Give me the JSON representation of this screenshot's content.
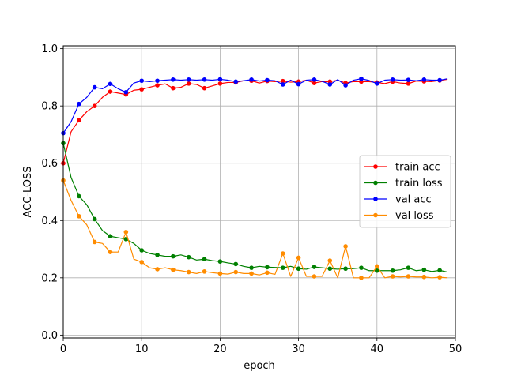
{
  "chart_data": {
    "type": "line",
    "xlabel": "epoch",
    "ylabel": "ACC-LOSS",
    "xlim": [
      0,
      50
    ],
    "ylim": [
      -0.01,
      1.01
    ],
    "xticks": [
      0,
      10,
      20,
      30,
      40,
      50
    ],
    "yticks": [
      0.0,
      0.2,
      0.4,
      0.6,
      0.8,
      1.0
    ],
    "xtick_labels": [
      "0",
      "10",
      "20",
      "30",
      "40",
      "50"
    ],
    "ytick_labels": [
      "0.0",
      "0.2",
      "0.4",
      "0.6",
      "0.8",
      "1.0"
    ],
    "grid": true,
    "legend_position": "center-right",
    "x": [
      0,
      1,
      2,
      3,
      4,
      5,
      6,
      7,
      8,
      9,
      10,
      11,
      12,
      13,
      14,
      15,
      16,
      17,
      18,
      19,
      20,
      21,
      22,
      23,
      24,
      25,
      26,
      27,
      28,
      29,
      30,
      31,
      32,
      33,
      34,
      35,
      36,
      37,
      38,
      39,
      40,
      41,
      42,
      43,
      44,
      45,
      46,
      47,
      48,
      49
    ],
    "marker_every": 2,
    "series": [
      {
        "name": "train acc",
        "color": "#ff0000",
        "values": [
          0.6,
          0.71,
          0.75,
          0.78,
          0.8,
          0.83,
          0.85,
          0.845,
          0.84,
          0.855,
          0.858,
          0.865,
          0.872,
          0.877,
          0.862,
          0.865,
          0.878,
          0.875,
          0.862,
          0.87,
          0.878,
          0.882,
          0.882,
          0.888,
          0.888,
          0.88,
          0.887,
          0.885,
          0.887,
          0.883,
          0.885,
          0.89,
          0.88,
          0.885,
          0.885,
          0.89,
          0.88,
          0.885,
          0.885,
          0.885,
          0.882,
          0.878,
          0.885,
          0.88,
          0.878,
          0.887,
          0.886,
          0.885,
          0.889,
          0.893
        ]
      },
      {
        "name": "train loss",
        "color": "#008000",
        "values": [
          0.67,
          0.55,
          0.485,
          0.455,
          0.405,
          0.365,
          0.345,
          0.34,
          0.335,
          0.32,
          0.296,
          0.285,
          0.28,
          0.275,
          0.275,
          0.28,
          0.272,
          0.262,
          0.265,
          0.26,
          0.257,
          0.252,
          0.248,
          0.24,
          0.235,
          0.24,
          0.237,
          0.236,
          0.235,
          0.24,
          0.232,
          0.23,
          0.238,
          0.235,
          0.232,
          0.23,
          0.232,
          0.232,
          0.235,
          0.225,
          0.225,
          0.225,
          0.225,
          0.228,
          0.235,
          0.225,
          0.228,
          0.222,
          0.226,
          0.22
        ]
      },
      {
        "name": "val acc",
        "color": "#0000ff",
        "values": [
          0.705,
          0.745,
          0.807,
          0.83,
          0.865,
          0.86,
          0.877,
          0.86,
          0.848,
          0.88,
          0.888,
          0.885,
          0.888,
          0.89,
          0.892,
          0.89,
          0.892,
          0.89,
          0.892,
          0.89,
          0.893,
          0.89,
          0.885,
          0.888,
          0.892,
          0.887,
          0.89,
          0.888,
          0.875,
          0.89,
          0.876,
          0.89,
          0.892,
          0.886,
          0.875,
          0.892,
          0.872,
          0.89,
          0.895,
          0.889,
          0.878,
          0.89,
          0.892,
          0.89,
          0.891,
          0.888,
          0.892,
          0.89,
          0.89,
          0.895
        ]
      },
      {
        "name": "val loss",
        "color": "#ff8c00",
        "values": [
          0.54,
          0.47,
          0.415,
          0.385,
          0.325,
          0.32,
          0.29,
          0.29,
          0.36,
          0.265,
          0.255,
          0.235,
          0.23,
          0.235,
          0.228,
          0.225,
          0.22,
          0.215,
          0.222,
          0.218,
          0.215,
          0.213,
          0.22,
          0.215,
          0.215,
          0.21,
          0.218,
          0.212,
          0.285,
          0.205,
          0.27,
          0.205,
          0.205,
          0.205,
          0.26,
          0.2,
          0.31,
          0.2,
          0.2,
          0.2,
          0.24,
          0.2,
          0.205,
          0.203,
          0.205,
          0.203,
          0.203,
          0.2,
          0.202,
          0.2
        ]
      }
    ]
  }
}
